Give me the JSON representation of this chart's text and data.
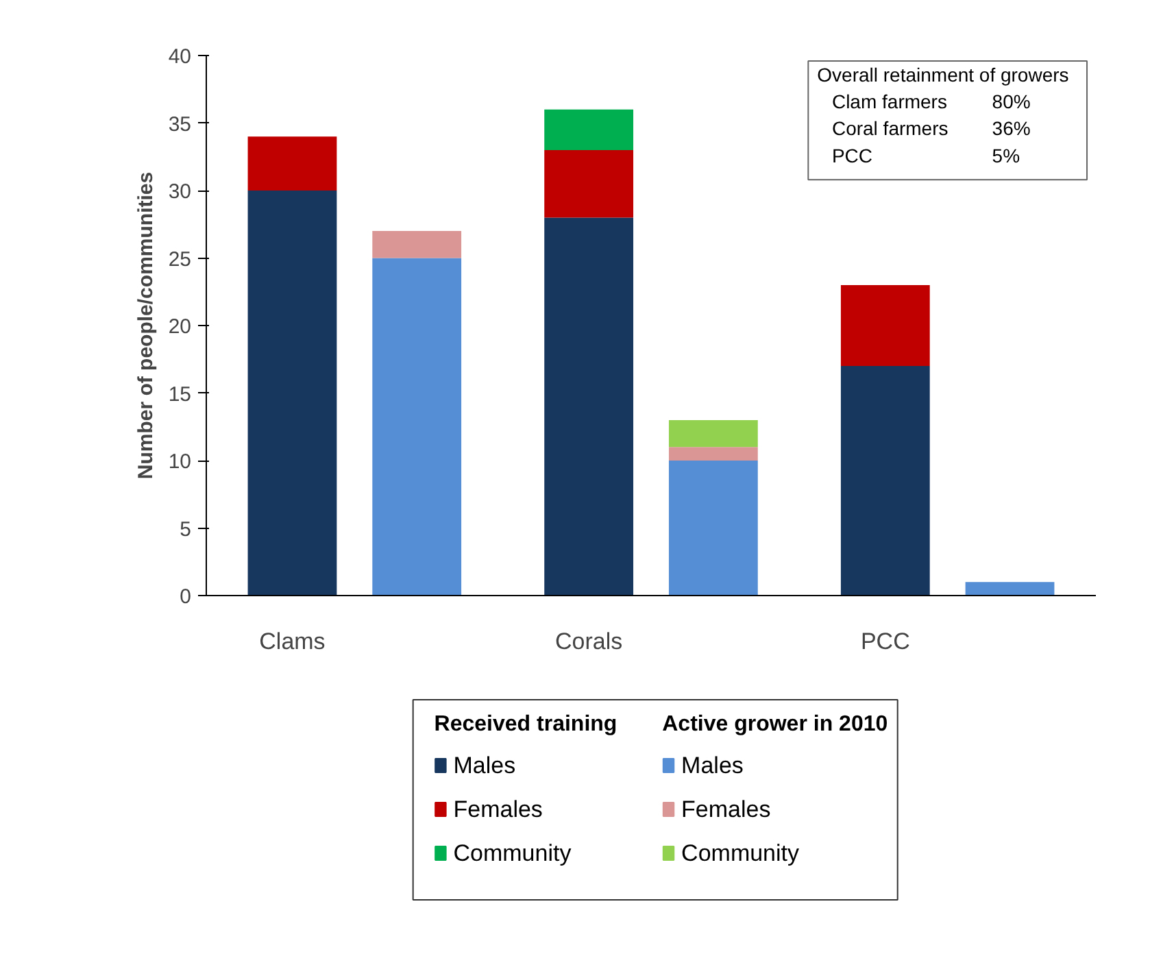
{
  "chart_data": {
    "type": "bar",
    "stacked": true,
    "ylabel": "Number of people/communities",
    "categories": [
      "Clams",
      null,
      "Corals",
      null,
      "PCC",
      null
    ],
    "ylim": [
      0,
      40
    ],
    "yticks": [
      0,
      5,
      10,
      15,
      20,
      25,
      30,
      35,
      40
    ],
    "grid": false,
    "legend": "bottom",
    "annotations": [
      "Received training",
      "Active grower in 2010",
      "Overall retainment of growers",
      "Clam farmers",
      "80%",
      "Coral farmers",
      "36%",
      "PCC",
      "5%"
    ],
    "series": [
      {
        "name": "Males",
        "color": "#17375e",
        "values": [
          30,
          null,
          28,
          null,
          17,
          null
        ]
      },
      {
        "name": "Females",
        "color": "#c00000",
        "values": [
          4,
          null,
          5,
          null,
          6,
          null
        ]
      },
      {
        "name": "Community",
        "color": "#00b050",
        "values": [
          null,
          null,
          3,
          null,
          null,
          null
        ]
      },
      {
        "name": "Males",
        "color": "#558ed5",
        "values": [
          null,
          25,
          null,
          10,
          null,
          1
        ]
      },
      {
        "name": "Females",
        "color": "#d99694",
        "values": [
          null,
          2,
          null,
          1,
          null,
          null
        ]
      },
      {
        "name": "Community",
        "color": "#92d050",
        "values": [
          null,
          null,
          null,
          2,
          null,
          null
        ]
      }
    ]
  }
}
